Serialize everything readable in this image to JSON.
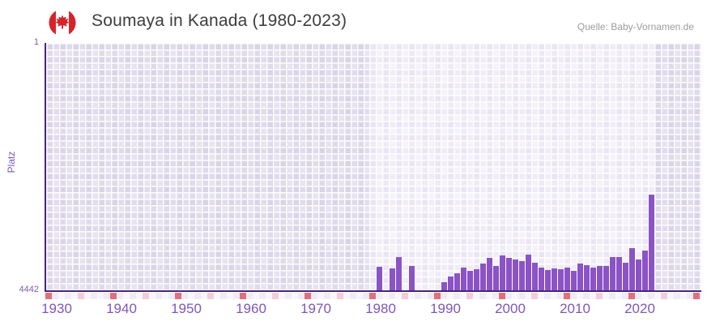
{
  "header": {
    "title": "Soumaya in Kanada (1980-2023)",
    "source": "Quelle: Baby-Vornamen.de",
    "flag_icon": "canada-flag-icon"
  },
  "chart_data": {
    "type": "bar",
    "title": "Soumaya in Kanada (1980-2023)",
    "xlabel": "",
    "ylabel": "Platz",
    "y_axis": {
      "top_tick_label": "1",
      "bottom_tick_label": "4442",
      "inverted": true,
      "range": [
        1,
        4442
      ]
    },
    "x_axis": {
      "tick_labels": [
        "1930",
        "1940",
        "1950",
        "1960",
        "1970",
        "1980",
        "1990",
        "2000",
        "2010",
        "2020"
      ],
      "strip_years": {
        "start": 1930,
        "end": 2030,
        "major_interval": 10,
        "minor_interval": 5
      }
    },
    "data_region_years": [
      1980,
      2023
    ],
    "series": [
      {
        "name": "Platz",
        "points": [
          {
            "year": 1980,
            "platz": null
          },
          {
            "year": 1981,
            "platz": 4020
          },
          {
            "year": 1982,
            "platz": null
          },
          {
            "year": 1983,
            "platz": 4049
          },
          {
            "year": 1984,
            "platz": 3845
          },
          {
            "year": 1985,
            "platz": null
          },
          {
            "year": 1986,
            "platz": 4001
          },
          {
            "year": 1987,
            "platz": null
          },
          {
            "year": 1988,
            "platz": null
          },
          {
            "year": 1989,
            "platz": null
          },
          {
            "year": 1990,
            "platz": null
          },
          {
            "year": 1991,
            "platz": 4301
          },
          {
            "year": 1992,
            "platz": 4195
          },
          {
            "year": 1993,
            "platz": 4141
          },
          {
            "year": 1994,
            "platz": 4034
          },
          {
            "year": 1995,
            "platz": 4097
          },
          {
            "year": 1996,
            "platz": 4059
          },
          {
            "year": 1997,
            "platz": 3961
          },
          {
            "year": 1998,
            "platz": 3864
          },
          {
            "year": 1999,
            "platz": 4009
          },
          {
            "year": 2000,
            "platz": 3816
          },
          {
            "year": 2001,
            "platz": 3864
          },
          {
            "year": 2002,
            "platz": 3893
          },
          {
            "year": 2003,
            "platz": 3922
          },
          {
            "year": 2004,
            "platz": 3806
          },
          {
            "year": 2005,
            "platz": 3951
          },
          {
            "year": 2006,
            "platz": 4034
          },
          {
            "year": 2007,
            "platz": 4073
          },
          {
            "year": 2008,
            "platz": 4048
          },
          {
            "year": 2009,
            "platz": 4059
          },
          {
            "year": 2010,
            "platz": 4034
          },
          {
            "year": 2011,
            "platz": 4097
          },
          {
            "year": 2012,
            "platz": 3961
          },
          {
            "year": 2013,
            "platz": 3986
          },
          {
            "year": 2014,
            "platz": 4034
          },
          {
            "year": 2015,
            "platz": 4001
          },
          {
            "year": 2016,
            "platz": 4001
          },
          {
            "year": 2017,
            "platz": 3840
          },
          {
            "year": 2018,
            "platz": 3840
          },
          {
            "year": 2019,
            "platz": 3947
          },
          {
            "year": 2020,
            "platz": 3680
          },
          {
            "year": 2021,
            "platz": 3893
          },
          {
            "year": 2022,
            "platz": 3729
          },
          {
            "year": 2023,
            "platz": 2724
          }
        ]
      }
    ],
    "layout_hints": {
      "legend": "none",
      "grid": "checkered-cells",
      "background_outside_data_range": "shaded"
    },
    "colors": {
      "bar": "#8b53c6",
      "axis_line": "#46257e",
      "tick_label": "#7e57b8",
      "title_text": "#3d3d3d",
      "source_text": "#9b9b9b",
      "major_tick_cell": "#e2707a",
      "minor_tick_cell": "#f2cdd9",
      "flag_red": "#d8222a"
    }
  }
}
